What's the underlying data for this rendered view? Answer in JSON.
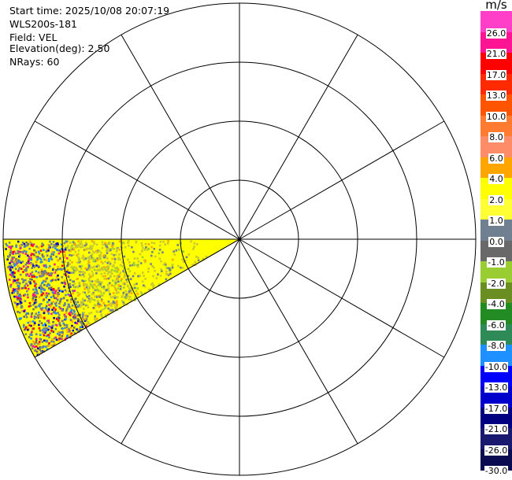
{
  "header": {
    "start_time": "Start time: 2025/10/08 20:07:19",
    "instrument": "WLS200s-181",
    "field": "Field: VEL",
    "elevation": "Elevation(deg): 2.50",
    "nrays": "NRays: 60"
  },
  "colorbar": {
    "unit": "m/s",
    "labels": [
      "26.0",
      "21.0",
      "17.0",
      "13.0",
      "10.0",
      "8.0",
      "6.0",
      "4.0",
      "2.0",
      "1.0",
      "0.0",
      "-1.0",
      "-2.0",
      "-4.0",
      "-6.0",
      "-8.0",
      "-10.0",
      "-13.0",
      "-17.0",
      "-21.0",
      "-26.0",
      "-30.0"
    ],
    "colors": [
      "#ff3fc8",
      "#ff1493",
      "#ff0000",
      "#ff2a00",
      "#ff5500",
      "#ff7b32",
      "#ff8c69",
      "#ffa500",
      "#ffff00",
      "#ffff33",
      "#708090",
      "#696969",
      "#9acd32",
      "#6b8e23",
      "#228b22",
      "#2e8b57",
      "#1e90ff",
      "#0000ff",
      "#0000cd",
      "#000080",
      "#191970",
      "#0a0a50"
    ]
  },
  "chart_data": {
    "type": "heatmap",
    "projection": "polar-ppi",
    "field": "VEL",
    "unit": "m/s",
    "rings": 4,
    "spokes": 12,
    "sector_azimuth_deg": [
      240,
      270
    ],
    "dominant_value_range": [
      2.0,
      4.0
    ],
    "color_scale_min": -30.0,
    "color_scale_max": 26.0
  }
}
